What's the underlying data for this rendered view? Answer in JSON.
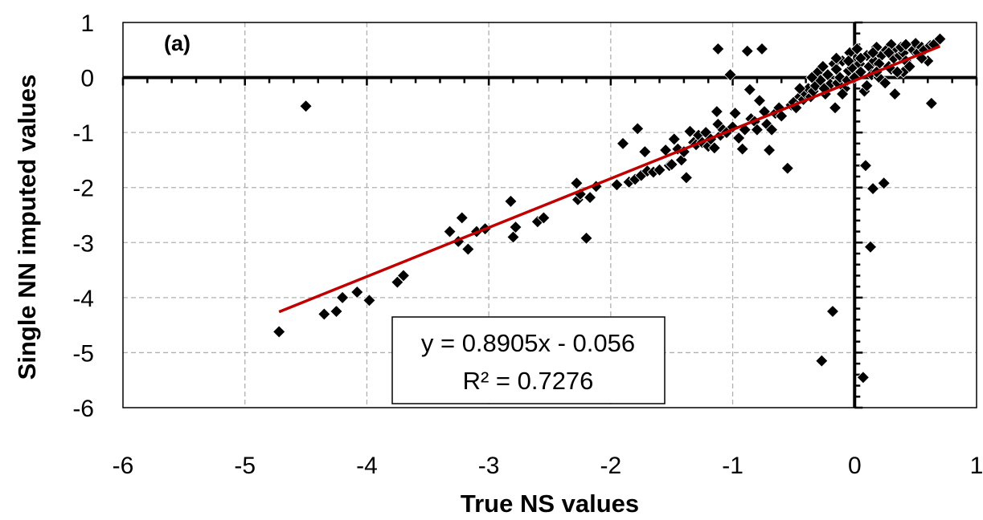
{
  "chart_data": {
    "type": "scatter",
    "panel_label": "(a)",
    "xlabel": "True NS values",
    "ylabel": "Single NN imputed values",
    "xlim": [
      -6,
      1
    ],
    "ylim": [
      -6,
      1
    ],
    "x_ticks": [
      -6,
      -5,
      -4,
      -3,
      -2,
      -1,
      0,
      1
    ],
    "y_ticks": [
      -6,
      -5,
      -4,
      -3,
      -2,
      -1,
      0,
      1
    ],
    "grid": true,
    "colors": {
      "marker": "#000000",
      "trendline": "#c00000",
      "grid": "#b0b0b0"
    },
    "trendline": {
      "slope": 0.8905,
      "intercept": -0.056,
      "x_range": [
        -4.72,
        0.7
      ],
      "equation": "y = 0.8905x - 0.056",
      "r_squared": "R² = 0.7276"
    },
    "points": [
      [
        -4.72,
        -4.62
      ],
      [
        -4.5,
        -0.52
      ],
      [
        -4.35,
        -4.3
      ],
      [
        -4.25,
        -4.25
      ],
      [
        -4.2,
        -4.0
      ],
      [
        -4.08,
        -3.9
      ],
      [
        -3.98,
        -4.05
      ],
      [
        -3.75,
        -3.72
      ],
      [
        -3.7,
        -3.6
      ],
      [
        -3.32,
        -2.8
      ],
      [
        -3.25,
        -2.98
      ],
      [
        -3.22,
        -2.55
      ],
      [
        -3.17,
        -3.12
      ],
      [
        -3.1,
        -2.8
      ],
      [
        -3.03,
        -2.75
      ],
      [
        -2.82,
        -2.25
      ],
      [
        -2.8,
        -2.9
      ],
      [
        -2.78,
        -2.72
      ],
      [
        -2.6,
        -2.62
      ],
      [
        -2.55,
        -2.55
      ],
      [
        -2.28,
        -1.92
      ],
      [
        -2.27,
        -2.22
      ],
      [
        -2.25,
        -2.12
      ],
      [
        -2.2,
        -2.92
      ],
      [
        -2.17,
        -2.18
      ],
      [
        -2.12,
        -1.98
      ],
      [
        -1.95,
        -1.95
      ],
      [
        -1.9,
        -1.2
      ],
      [
        -1.85,
        -1.9
      ],
      [
        -1.8,
        -1.85
      ],
      [
        -1.78,
        -0.93
      ],
      [
        -1.75,
        -1.78
      ],
      [
        -1.72,
        -1.35
      ],
      [
        -1.7,
        -1.7
      ],
      [
        -1.65,
        -1.72
      ],
      [
        -1.6,
        -1.68
      ],
      [
        -1.55,
        -1.32
      ],
      [
        -1.52,
        -1.6
      ],
      [
        -1.5,
        -1.58
      ],
      [
        -1.48,
        -1.12
      ],
      [
        -1.45,
        -1.3
      ],
      [
        -1.42,
        -1.5
      ],
      [
        -1.4,
        -1.35
      ],
      [
        -1.38,
        -1.82
      ],
      [
        -1.35,
        -0.98
      ],
      [
        -1.32,
        -1.18
      ],
      [
        -1.3,
        -1.22
      ],
      [
        -1.28,
        -1.05
      ],
      [
        -1.25,
        -1.18
      ],
      [
        -1.22,
        -1.0
      ],
      [
        -1.2,
        -1.25
      ],
      [
        -1.18,
        -1.12
      ],
      [
        -1.15,
        -1.28
      ],
      [
        -1.13,
        -0.62
      ],
      [
        -1.12,
        -0.85
      ],
      [
        -1.12,
        0.52
      ],
      [
        -1.1,
        -1.05
      ],
      [
        -1.08,
        -0.95
      ],
      [
        -1.05,
        -1.0
      ],
      [
        -1.02,
        0.05
      ],
      [
        -1.0,
        -0.9
      ],
      [
        -0.98,
        -0.65
      ],
      [
        -0.95,
        -1.1
      ],
      [
        -0.92,
        -1.3
      ],
      [
        -0.9,
        -0.95
      ],
      [
        -0.88,
        0.48
      ],
      [
        -0.86,
        -0.22
      ],
      [
        -0.85,
        -0.75
      ],
      [
        -0.82,
        -0.8
      ],
      [
        -0.8,
        -0.95
      ],
      [
        -0.78,
        -0.42
      ],
      [
        -0.76,
        0.52
      ],
      [
        -0.74,
        -0.62
      ],
      [
        -0.72,
        -0.85
      ],
      [
        -0.7,
        -1.32
      ],
      [
        -0.68,
        -0.95
      ],
      [
        -0.65,
        -0.65
      ],
      [
        -0.62,
        -0.55
      ],
      [
        -0.6,
        -0.7
      ],
      [
        -0.55,
        -1.65
      ],
      [
        -0.52,
        -0.5
      ],
      [
        -0.5,
        -0.45
      ],
      [
        -0.48,
        -0.55
      ],
      [
        -0.45,
        -0.35
      ],
      [
        -0.42,
        -0.4
      ],
      [
        -0.4,
        -0.3
      ],
      [
        -0.38,
        -0.2
      ],
      [
        -0.36,
        -0.35
      ],
      [
        -0.34,
        -0.25
      ],
      [
        -0.32,
        -0.15
      ],
      [
        -0.3,
        0.1
      ],
      [
        -0.28,
        -0.05
      ],
      [
        -0.27,
        -5.15
      ],
      [
        -0.26,
        0.2
      ],
      [
        -0.24,
        -0.3
      ],
      [
        -0.22,
        0.05
      ],
      [
        -0.2,
        -0.12
      ],
      [
        -0.18,
        -4.25
      ],
      [
        -0.17,
        0.25
      ],
      [
        -0.16,
        -0.55
      ],
      [
        -0.15,
        0.15
      ],
      [
        -0.14,
        -0.1
      ],
      [
        -0.12,
        0.0
      ],
      [
        -0.1,
        0.3
      ],
      [
        -0.08,
        -0.2
      ],
      [
        -0.06,
        -0.05
      ],
      [
        -0.05,
        0.12
      ],
      [
        -0.04,
        0.45
      ],
      [
        -0.02,
        0.18
      ],
      [
        0.0,
        0.0
      ],
      [
        0.02,
        0.52
      ],
      [
        0.04,
        0.25
      ],
      [
        0.05,
        0.1
      ],
      [
        0.07,
        -5.45
      ],
      [
        0.08,
        -0.25
      ],
      [
        0.09,
        -1.6
      ],
      [
        0.1,
        0.4
      ],
      [
        0.12,
        0.2
      ],
      [
        0.13,
        -3.08
      ],
      [
        0.14,
        0.05
      ],
      [
        0.15,
        -2.02
      ],
      [
        0.16,
        0.3
      ],
      [
        0.18,
        0.55
      ],
      [
        0.2,
        0.0
      ],
      [
        0.22,
        0.4
      ],
      [
        0.24,
        -1.92
      ],
      [
        0.26,
        0.5
      ],
      [
        0.28,
        0.2
      ],
      [
        0.3,
        0.6
      ],
      [
        0.32,
        0.35
      ],
      [
        0.33,
        -0.3
      ],
      [
        0.35,
        0.5
      ],
      [
        0.37,
        0.4
      ],
      [
        0.4,
        0.45
      ],
      [
        0.42,
        0.3
      ],
      [
        0.45,
        0.55
      ],
      [
        0.48,
        0.5
      ],
      [
        0.5,
        0.62
      ],
      [
        0.52,
        0.45
      ],
      [
        0.55,
        0.55
      ],
      [
        0.57,
        0.5
      ],
      [
        0.6,
        0.3
      ],
      [
        0.62,
        0.58
      ],
      [
        0.63,
        -0.47
      ],
      [
        0.65,
        0.6
      ],
      [
        0.7,
        0.7
      ],
      [
        0.4,
        0.1
      ],
      [
        0.25,
        -0.1
      ],
      [
        -0.35,
        0.0
      ],
      [
        -0.15,
        0.35
      ],
      [
        0.05,
        0.35
      ],
      [
        0.3,
        0.15
      ],
      [
        0.45,
        0.2
      ],
      [
        -0.25,
        -0.2
      ],
      [
        0.1,
        -0.15
      ],
      [
        0.2,
        0.25
      ],
      [
        0.35,
        0.1
      ],
      [
        -0.05,
        0.3
      ],
      [
        0.15,
        0.45
      ],
      [
        0.38,
        0.55
      ],
      [
        -0.45,
        -0.2
      ],
      [
        0.55,
        0.35
      ],
      [
        0.28,
        0.45
      ],
      [
        -0.1,
        -0.3
      ],
      [
        0.18,
        0.1
      ],
      [
        0.42,
        0.6
      ]
    ]
  }
}
